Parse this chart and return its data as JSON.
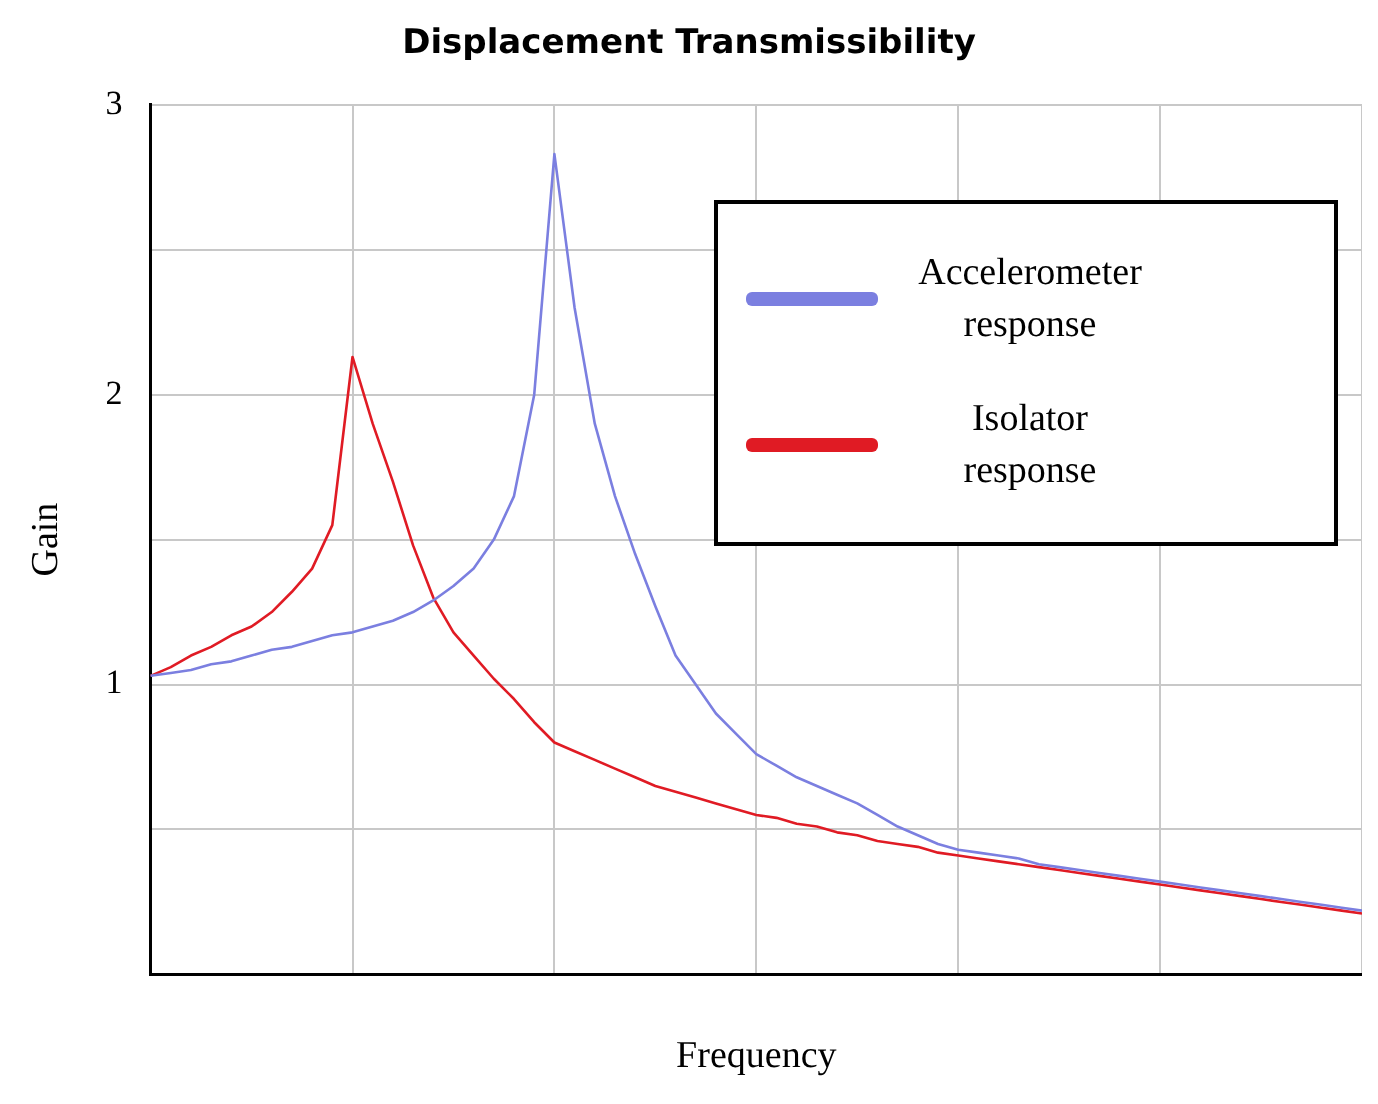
{
  "chart_data": {
    "type": "line",
    "title": "Displacement Transmissibility",
    "xlabel": "Frequency",
    "ylabel": "Gain",
    "categories": [
      null,
      null,
      null,
      null,
      null,
      null,
      null,
      null,
      null,
      null,
      null,
      null,
      null,
      null,
      null,
      null,
      null,
      null,
      null,
      null,
      null,
      null,
      null,
      null,
      null,
      null,
      null,
      null,
      null,
      null,
      null,
      null,
      null,
      null,
      null,
      null,
      null,
      null,
      null,
      null,
      null,
      null,
      null,
      null,
      null,
      null,
      null,
      null,
      null,
      null,
      null,
      null,
      null,
      null,
      null,
      null,
      null,
      null,
      null,
      null,
      null
    ],
    "ylim": [
      0,
      3
    ],
    "yticks": [
      {
        "value": 0.5,
        "label": null
      },
      1,
      {
        "value": 1.5,
        "label": null
      },
      2,
      {
        "value": 2.5,
        "label": null
      },
      3
    ],
    "tick_labels": "y",
    "grid": true,
    "legend": "top right",
    "marker": "none",
    "line_style": "solid",
    "series": [
      {
        "name": "Accelerometer response",
        "color": "#7b7fe0",
        "values": [
          1.03,
          1.04,
          1.05,
          1.07,
          1.08,
          1.1,
          1.12,
          1.13,
          1.15,
          1.17,
          1.18,
          1.2,
          1.22,
          1.25,
          1.29,
          1.34,
          1.4,
          1.5,
          1.65,
          2,
          2.83,
          2.3,
          1.9,
          1.65,
          1.45,
          1.27,
          1.1,
          1,
          0.9,
          0.83,
          0.76,
          0.72,
          0.68,
          0.65,
          0.62,
          0.59,
          0.55,
          0.51,
          0.48,
          0.45,
          0.43,
          0.42,
          0.41,
          0.4,
          0.38,
          0.37,
          0.36,
          0.35,
          0.34,
          0.33,
          0.32,
          0.31,
          0.3,
          0.29,
          0.28,
          0.27,
          0.26,
          0.25,
          0.24,
          0.23,
          0.22
        ]
      },
      {
        "name": "Isolator response",
        "color": "#e01b24",
        "values": [
          1.03,
          1.06,
          1.1,
          1.13,
          1.17,
          1.2,
          1.25,
          1.32,
          1.4,
          1.55,
          2.13,
          1.9,
          1.7,
          1.48,
          1.3,
          1.18,
          1.1,
          1.02,
          0.95,
          0.87,
          0.8,
          0.77,
          0.74,
          0.71,
          0.68,
          0.65,
          0.63,
          0.61,
          0.59,
          0.57,
          0.55,
          0.54,
          0.52,
          0.51,
          0.49,
          0.48,
          0.46,
          0.45,
          0.44,
          0.42,
          0.41,
          0.4,
          0.39,
          0.38,
          0.37,
          0.36,
          0.35,
          0.34,
          0.33,
          0.32,
          0.31,
          0.3,
          0.29,
          0.28,
          0.27,
          0.26,
          0.25,
          0.24,
          0.23,
          0.22,
          0.21
        ]
      }
    ]
  }
}
